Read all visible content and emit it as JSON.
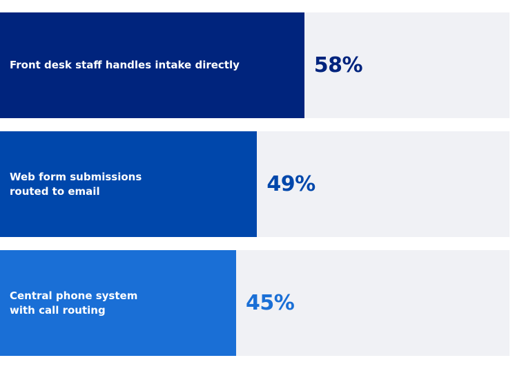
{
  "chart_data": {
    "type": "bar",
    "orientation": "horizontal",
    "categories": [
      [
        "Front desk staff handles intake directly"
      ],
      [
        "Web form submissions",
        "routed to email"
      ],
      [
        "Central phone system",
        "with call routing"
      ]
    ],
    "values": [
      58,
      49,
      45
    ],
    "value_labels": [
      "58%",
      "49%",
      "45%"
    ],
    "colors": [
      "#00247d",
      "#0047ab",
      "#1a6fd6"
    ],
    "track_color": "#f0f1f5"
  }
}
